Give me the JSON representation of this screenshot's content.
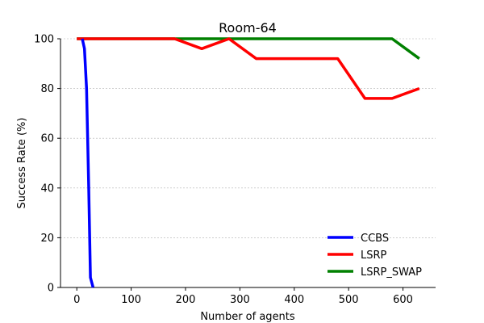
{
  "chart_data": {
    "type": "line",
    "title": "Room-64",
    "xlabel": "Number of agents",
    "ylabel": "Success Rate (%)",
    "xlim": [
      -30,
      660
    ],
    "ylim": [
      0,
      100
    ],
    "xticks": [
      0,
      100,
      200,
      300,
      400,
      500,
      600
    ],
    "yticks": [
      0,
      20,
      40,
      60,
      80,
      100
    ],
    "grid": "y-dashed",
    "legend": "bottom-right",
    "series": [
      {
        "name": "CCBS",
        "color": "#0000ff",
        "x": [
          10,
          14,
          18,
          22,
          25,
          30
        ],
        "y": [
          100,
          96,
          80,
          40,
          4,
          0
        ]
      },
      {
        "name": "LSRP",
        "color": "#ff0000",
        "x": [
          0,
          180,
          230,
          280,
          330,
          480,
          530,
          580,
          630
        ],
        "y": [
          100,
          100,
          96,
          100,
          92,
          92,
          76,
          76,
          80
        ]
      },
      {
        "name": "LSRP_SWAP",
        "color": "#008000",
        "x": [
          0,
          580,
          630
        ],
        "y": [
          100,
          100,
          92
        ]
      }
    ]
  }
}
